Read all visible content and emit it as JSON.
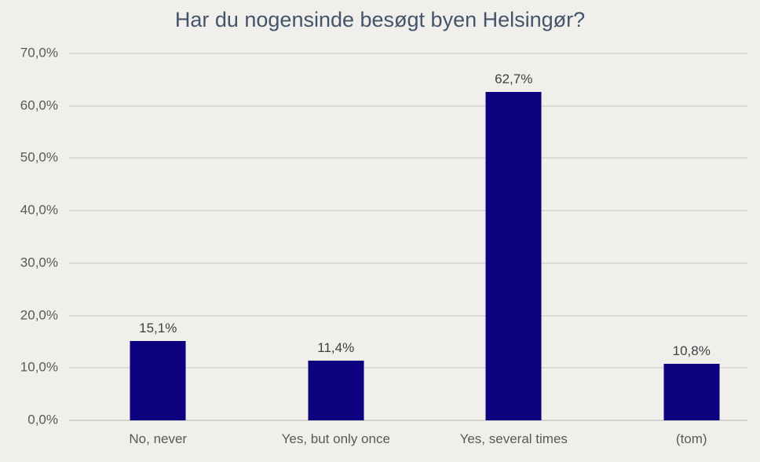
{
  "chart_data": {
    "type": "bar",
    "title": "Har du nogensinde besøgt byen Helsingør?",
    "categories": [
      "No, never",
      "Yes, but only once",
      "Yes, several times",
      "(tom)"
    ],
    "values": [
      15.1,
      11.4,
      62.7,
      10.8
    ],
    "value_labels": [
      "15,1%",
      "11,4%",
      "62,7%",
      "10,8%"
    ],
    "xlabel": "",
    "ylabel": "",
    "ylim": [
      0,
      70
    ],
    "ytick_step": 10,
    "ytick_labels": [
      "0,0%",
      "10,0%",
      "20,0%",
      "30,0%",
      "40,0%",
      "50,0%",
      "60,0%",
      "70,0%"
    ],
    "grid": true,
    "legend": "none",
    "bar_color": "#0d0180",
    "background_color": "#f0efec",
    "gridline_color": "#dcdad7",
    "title_color": "#44546a",
    "axis_label_color": "#595959",
    "data_label_color": "#404040"
  }
}
